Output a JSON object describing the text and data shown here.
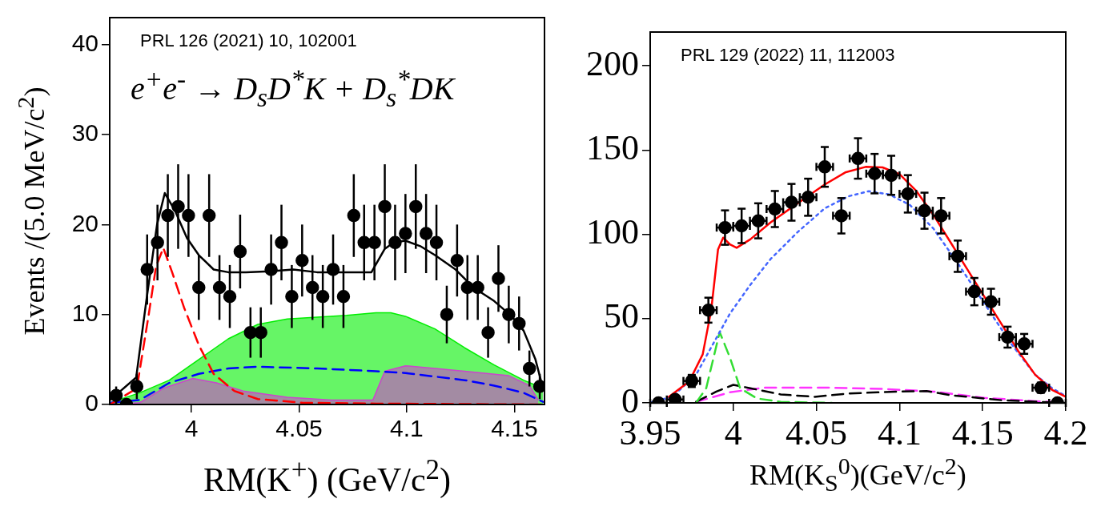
{
  "chart_data": [
    {
      "type": "scatter",
      "annotations": [
        "PRL 126 (2021) 10, 102001",
        "e$^{+}$e$^{-}$ → D$_{s}$D$^{*}$K + D$_{s}$$^{*}$DK"
      ],
      "xlabel": "RM(K$^{+}$) (GeV/c$^{2}$)",
      "ylabel": "Events /(5.0 MeV/c$^{2}$)",
      "xlim": [
        3.962,
        4.164
      ],
      "xticks": [
        4,
        4.05,
        4.1,
        4.15
      ],
      "ylim": [
        0,
        43
      ],
      "yticks": [
        0,
        10,
        20,
        30,
        40
      ],
      "grid": false,
      "legend": false,
      "series": [
        {
          "type": "area",
          "color": "#00ee00",
          "x": [
            3.9622,
            3.976,
            3.9897,
            4.0034,
            4.0171,
            4.0308,
            4.0445,
            4.0583,
            4.072,
            4.0857,
            4.0926,
            4.0994,
            4.1131,
            4.1269,
            4.1406,
            4.1543,
            4.1633
          ],
          "values": [
            0.2,
            1.3,
            2.7,
            5,
            7.3,
            8.9,
            9.5,
            9.7,
            9.9,
            10.2,
            10.2,
            9.8,
            8.4,
            6.3,
            4.4,
            2.7,
            1.8
          ]
        },
        {
          "type": "area",
          "color": "#cc44cc",
          "x": [
            3.9622,
            3.976,
            3.9869,
            4.0006,
            4.0116,
            4.024,
            4.0445,
            4.0651,
            4.0843,
            4.0898,
            4.0994,
            4.1131,
            4.1269,
            4.1474,
            4.157,
            4.1611
          ],
          "values": [
            0,
            0.2,
            1.8,
            2.9,
            2.4,
            1.5,
            0.8,
            0.5,
            0.5,
            3.7,
            4.3,
            4,
            3.7,
            3.2,
            2.1,
            0.5
          ]
        },
        {
          "type": "line",
          "color": "#0000ff",
          "line_style": "dashed",
          "x": [
            3.9622,
            3.976,
            3.9897,
            4.0034,
            4.0171,
            4.0308,
            4.0583,
            4.0857,
            4.0994,
            4.1131,
            4.1269,
            4.1406,
            4.1543,
            4.1633
          ],
          "values": [
            0.2,
            0.5,
            2.4,
            3.4,
            4,
            4.2,
            4,
            3.7,
            3.5,
            3.1,
            2.7,
            2.1,
            1.3,
            0.3
          ]
        },
        {
          "type": "line",
          "color": "#ff0000",
          "line_style": "dashed",
          "x": [
            3.9622,
            3.9746,
            3.98,
            3.9835,
            3.9869,
            3.991,
            3.9965,
            4.0034,
            4.0103,
            4.0199,
            4.0308,
            4.0514,
            4.0857,
            4.1633
          ],
          "values": [
            0,
            1.8,
            9.8,
            15.3,
            17.4,
            14.7,
            10.8,
            6.6,
            3.4,
            1.5,
            0.6,
            0.2,
            0.1,
            0
          ]
        },
        {
          "type": "line",
          "color": "#000000",
          "line_style": "solid",
          "x": [
            3.9622,
            3.9743,
            3.979,
            3.984,
            3.9876,
            3.9924,
            3.9979,
            4.0034,
            4.0103,
            4.0171,
            4.0253,
            4.0363,
            4.0473,
            4.0583,
            4.072,
            4.0836,
            4.0898,
            4.0939,
            4.0994,
            4.1063,
            4.1131,
            4.1227,
            4.131,
            4.1406,
            4.1488,
            4.1543,
            4.1598,
            4.1633
          ],
          "values": [
            0.5,
            3,
            11.5,
            20,
            23.5,
            21.5,
            18.5,
            16.6,
            15,
            14.7,
            14.7,
            14.8,
            15,
            14.7,
            14.7,
            14.7,
            17.3,
            18,
            18.2,
            17.6,
            16.6,
            15,
            13,
            11.5,
            9.8,
            8.2,
            5,
            1.8
          ]
        },
        {
          "type": "scatter",
          "color": "#000000",
          "marker": "circle",
          "x": [
            3.965,
            3.9698,
            3.9746,
            3.9794,
            3.9842,
            3.989,
            3.9938,
            3.9986,
            4.0034,
            4.0082,
            4.013,
            4.0178,
            4.0226,
            4.0274,
            4.0322,
            4.037,
            4.0418,
            4.0466,
            4.0514,
            4.0562,
            4.061,
            4.0658,
            4.0706,
            4.0754,
            4.0802,
            4.085,
            4.0898,
            4.0946,
            4.0994,
            4.1042,
            4.109,
            4.1138,
            4.1186,
            4.1234,
            4.1282,
            4.133,
            4.1378,
            4.1426,
            4.1474,
            4.1522,
            4.157,
            4.1618
          ],
          "values": [
            1,
            0,
            2,
            15,
            18,
            21,
            22,
            21,
            13,
            21,
            13,
            12,
            17,
            8,
            8,
            15,
            18,
            12,
            16,
            13,
            12,
            15,
            12,
            21,
            18,
            18,
            22,
            18,
            19,
            22,
            19,
            18,
            10,
            16,
            13,
            13,
            8,
            14,
            10,
            9,
            4,
            2
          ],
          "errors": [
            1,
            null,
            1.4,
            3.9,
            4.2,
            4.6,
            4.7,
            4.6,
            3.6,
            4.6,
            3.6,
            3.5,
            4.1,
            2.8,
            2.8,
            3.9,
            4.2,
            3.5,
            4,
            3.6,
            3.5,
            3.9,
            3.5,
            4.6,
            4.2,
            4.2,
            4.7,
            4.2,
            4.4,
            4.7,
            4.4,
            4.2,
            3.2,
            4,
            3.6,
            3.6,
            2.8,
            3.7,
            3.2,
            3,
            2,
            1.4
          ]
        }
      ]
    },
    {
      "type": "scatter",
      "annotations": [
        "PRL 129 (2022) 11, 112003"
      ],
      "xlabel": "RM(K$_{S}$$^{0}$)(GeV/c$^{2}$)",
      "xlim": [
        3.95,
        4.2
      ],
      "xticks": [
        3.95,
        4,
        4.05,
        4.1,
        4.15,
        4.2
      ],
      "ylim": [
        0,
        220
      ],
      "yticks": [
        0,
        50,
        100,
        150,
        200
      ],
      "grid": false,
      "legend": false,
      "series": [
        {
          "type": "line",
          "color": "#ff33ff",
          "line_style": "dashed",
          "x": [
            3.9776,
            3.998,
            4.0184,
            4.0592,
            4.0898,
            4.1204,
            4.151,
            4.1816,
            4.198
          ],
          "values": [
            0.6,
            6.3,
            9,
            9,
            8.3,
            6.7,
            3,
            1,
            0.2
          ]
        },
        {
          "type": "line",
          "color": "#000000",
          "line_style": "dashed",
          "x": [
            3.9776,
            3.9898,
            4,
            4.0102,
            4.0286,
            4.049,
            4.0694,
            4.1,
            4.1163,
            4.1306,
            4.1612,
            4.198
          ],
          "values": [
            0.6,
            6.7,
            10.7,
            8.7,
            5,
            3.6,
            5.6,
            6.7,
            7,
            4.6,
            1.6,
            0
          ]
        },
        {
          "type": "line",
          "color": "#33dd33",
          "line_style": "dashed",
          "x": [
            3.9776,
            3.9837,
            3.9918,
            3.998,
            4.0041,
            4.0143,
            4.0286,
            4.0592
          ],
          "values": [
            0,
            8.7,
            42,
            26.8,
            8.7,
            2.6,
            0.6,
            0
          ]
        },
        {
          "type": "line",
          "color": "#4466ff",
          "line_style": "dotted",
          "x": [
            3.95,
            3.9633,
            3.9776,
            3.9878,
            3.998,
            4.0102,
            4.0224,
            4.0388,
            4.0551,
            4.0694,
            4.0816,
            4.0939,
            4.1061,
            4.1204,
            4.1347,
            4.151,
            4.1673,
            4.1816,
            4.1918,
            4.2
          ],
          "values": [
            0.2,
            3.6,
            16.7,
            34.9,
            53,
            70,
            85.3,
            101.4,
            115.5,
            122.6,
            125.6,
            123.6,
            117.5,
            103.4,
            83.3,
            59,
            34.9,
            16.7,
            8.7,
            4
          ]
        },
        {
          "type": "line",
          "color": "#ff0000",
          "line_style": "solid",
          "x": [
            3.9612,
            3.9735,
            3.9816,
            3.9867,
            3.9908,
            3.9939,
            3.998,
            4.002,
            4.0102,
            4.0224,
            4.0388,
            4.0551,
            4.0673,
            4.0796,
            4.0898,
            4.1,
            4.1102,
            4.1204,
            4.1306,
            4.1408,
            4.151,
            4.1612,
            4.1714,
            4.1816,
            4.1918,
            4.2
          ],
          "values": [
            3.6,
            12.7,
            28.8,
            55,
            91,
            98,
            94,
            92,
            97,
            107,
            118.5,
            129.6,
            136.7,
            140,
            139.7,
            135.7,
            125.6,
            111.5,
            95.4,
            79.2,
            63,
            47,
            30.8,
            16.7,
            7.7,
            3.6
          ]
        },
        {
          "type": "scatter",
          "color": "#000000",
          "marker": "circle",
          "x": [
            3.955,
            3.965,
            3.975,
            3.985,
            3.995,
            4.005,
            4.015,
            4.025,
            4.035,
            4.045,
            4.055,
            4.065,
            4.075,
            4.085,
            4.095,
            4.105,
            4.115,
            4.125,
            4.135,
            4.145,
            4.155,
            4.165,
            4.175,
            4.185,
            4.195
          ],
          "values": [
            0,
            2,
            13,
            55,
            104,
            105,
            108,
            115,
            119,
            122,
            140,
            111,
            145,
            136,
            135,
            124,
            114,
            111,
            87,
            66,
            60,
            39,
            35,
            9,
            0
          ],
          "errors": [
            null,
            1.4,
            3.6,
            7.4,
            10.2,
            10.2,
            10.4,
            10.7,
            10.9,
            11,
            11.8,
            10.5,
            12,
            11.7,
            11.6,
            11.1,
            10.7,
            10.5,
            9.3,
            8.1,
            7.7,
            6.2,
            5.9,
            3,
            null
          ],
          "xerrors": [
            0.005,
            0.005,
            0.005,
            0.005,
            0.005,
            0.005,
            0.005,
            0.005,
            0.005,
            0.005,
            0.005,
            0.005,
            0.005,
            0.005,
            0.005,
            0.005,
            0.005,
            0.005,
            0.005,
            0.005,
            0.005,
            0.005,
            0.005,
            0.005,
            0.005
          ]
        }
      ]
    }
  ]
}
